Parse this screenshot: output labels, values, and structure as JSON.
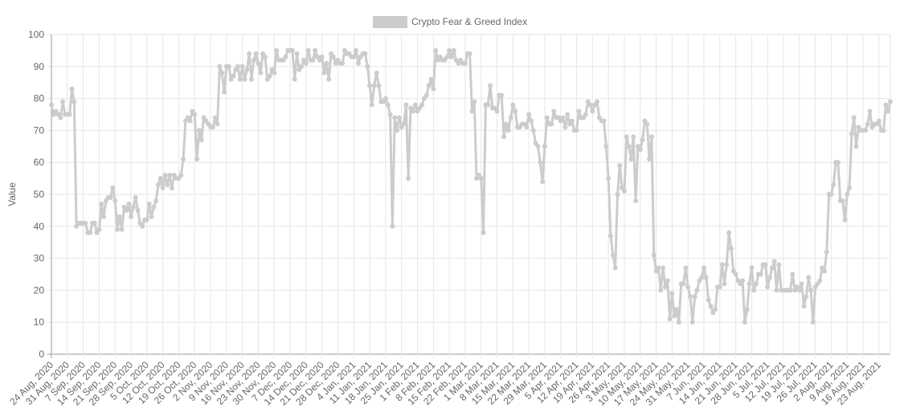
{
  "chart_data": {
    "type": "line",
    "title": "",
    "xlabel": "",
    "ylabel": "Value",
    "ylim": [
      0,
      100
    ],
    "y_ticks": [
      0,
      10,
      20,
      30,
      40,
      50,
      60,
      70,
      80,
      90,
      100
    ],
    "grid": true,
    "legend_position": "top",
    "x_tick_labels": [
      "24 Aug, 2020",
      "31 Aug, 2020",
      "7 Sep, 2020",
      "14 Sep, 2020",
      "21 Sep, 2020",
      "28 Sep, 2020",
      "5 Oct, 2020",
      "12 Oct, 2020",
      "19 Oct, 2020",
      "26 Oct, 2020",
      "2 Nov, 2020",
      "9 Nov, 2020",
      "16 Nov, 2020",
      "23 Nov, 2020",
      "30 Nov, 2020",
      "7 Dec, 2020",
      "14 Dec, 2020",
      "21 Dec, 2020",
      "28 Dec, 2020",
      "4 Jan, 2021",
      "11 Jan, 2021",
      "18 Jan, 2021",
      "25 Jan, 2021",
      "1 Feb, 2021",
      "8 Feb, 2021",
      "15 Feb, 2021",
      "22 Feb, 2021",
      "1 Mar, 2021",
      "8 Mar, 2021",
      "15 Mar, 2021",
      "22 Mar, 2021",
      "29 Mar, 2021",
      "5 Apr, 2021",
      "12 Apr, 2021",
      "19 Apr, 2021",
      "26 Apr, 2021",
      "3 May, 2021",
      "10 May, 2021",
      "17 May, 2021",
      "24 May, 2021",
      "31 May, 2021",
      "7 Jun, 2021",
      "14 Jun, 2021",
      "21 Jun, 2021",
      "28 Jun, 2021",
      "5 Jul, 2021",
      "12 Jul, 2021",
      "19 Jul, 2021",
      "26 Jul, 2021",
      "2 Aug, 2021",
      "9 Aug, 2021",
      "16 Aug, 2021",
      "23 Aug, 2021"
    ],
    "series": [
      {
        "name": "Crypto Fear & Greed Index",
        "color": "#cccccc",
        "start_date": "24 Aug, 2020",
        "values": [
          78,
          75,
          76,
          75,
          74,
          79,
          75,
          75,
          75,
          83,
          79,
          40,
          41,
          41,
          41,
          41,
          38,
          38,
          41,
          41,
          38,
          39,
          47,
          43,
          48,
          49,
          49,
          52,
          48,
          39,
          43,
          39,
          46,
          45,
          47,
          43,
          46,
          49,
          45,
          41,
          40,
          42,
          42,
          47,
          43,
          46,
          48,
          53,
          55,
          52,
          56,
          53,
          56,
          52,
          56,
          55,
          55,
          56,
          61,
          73,
          74,
          73,
          76,
          75,
          61,
          70,
          67,
          74,
          73,
          72,
          71,
          71,
          74,
          72,
          90,
          88,
          82,
          90,
          90,
          86,
          87,
          89,
          90,
          86,
          90,
          86,
          89,
          94,
          86,
          92,
          94,
          91,
          88,
          94,
          93,
          86,
          87,
          89,
          88,
          95,
          92,
          92,
          92,
          93,
          95,
          95,
          95,
          86,
          94,
          89,
          90,
          92,
          91,
          95,
          92,
          92,
          95,
          93,
          92,
          93,
          88,
          91,
          86,
          94,
          93,
          91,
          92,
          91,
          91,
          95,
          94,
          94,
          93,
          93,
          95,
          91,
          93,
          94,
          94,
          90,
          84,
          78,
          84,
          88,
          84,
          79,
          79,
          80,
          78,
          75,
          40,
          74,
          70,
          74,
          71,
          72,
          78,
          55,
          77,
          76,
          78,
          76,
          77,
          78,
          80,
          81,
          84,
          86,
          83,
          95,
          92,
          93,
          92,
          92,
          93,
          95,
          93,
          95,
          92,
          91,
          92,
          91,
          91,
          94,
          94,
          76,
          79,
          55,
          56,
          55,
          38,
          78,
          78,
          84,
          77,
          77,
          76,
          81,
          81,
          68,
          72,
          70,
          74,
          78,
          76,
          71,
          71,
          72,
          72,
          71,
          75,
          73,
          70,
          66,
          65,
          60,
          54,
          65,
          74,
          72,
          72,
          76,
          74,
          74,
          73,
          74,
          71,
          75,
          72,
          73,
          70,
          70,
          76,
          74,
          74,
          75,
          79,
          78,
          76,
          78,
          79,
          74,
          73,
          73,
          65,
          55,
          37,
          31,
          27,
          50,
          59,
          52,
          51,
          68,
          65,
          61,
          68,
          48,
          65,
          64,
          67,
          73,
          72,
          61,
          68,
          31,
          26,
          27,
          20,
          27,
          21,
          23,
          11,
          19,
          12,
          14,
          10,
          22,
          22,
          27,
          21,
          18,
          10,
          18,
          20,
          23,
          24,
          27,
          24,
          17,
          15,
          13,
          14,
          21,
          21,
          28,
          22,
          28,
          38,
          33,
          26,
          25,
          23,
          22,
          23,
          10,
          14,
          22,
          27,
          20,
          22,
          25,
          25,
          28,
          28,
          21,
          24,
          27,
          29,
          20,
          28,
          20,
          20,
          20,
          20,
          20,
          25,
          20,
          21,
          20,
          22,
          15,
          18,
          24,
          20,
          10,
          21,
          22,
          23,
          27,
          26,
          32,
          50,
          50,
          53,
          60,
          60,
          48,
          48,
          42,
          50,
          52,
          69,
          74,
          65,
          71,
          70,
          70,
          70,
          72,
          76,
          71,
          72,
          72,
          73,
          70,
          70,
          78,
          76,
          79
        ]
      }
    ]
  }
}
